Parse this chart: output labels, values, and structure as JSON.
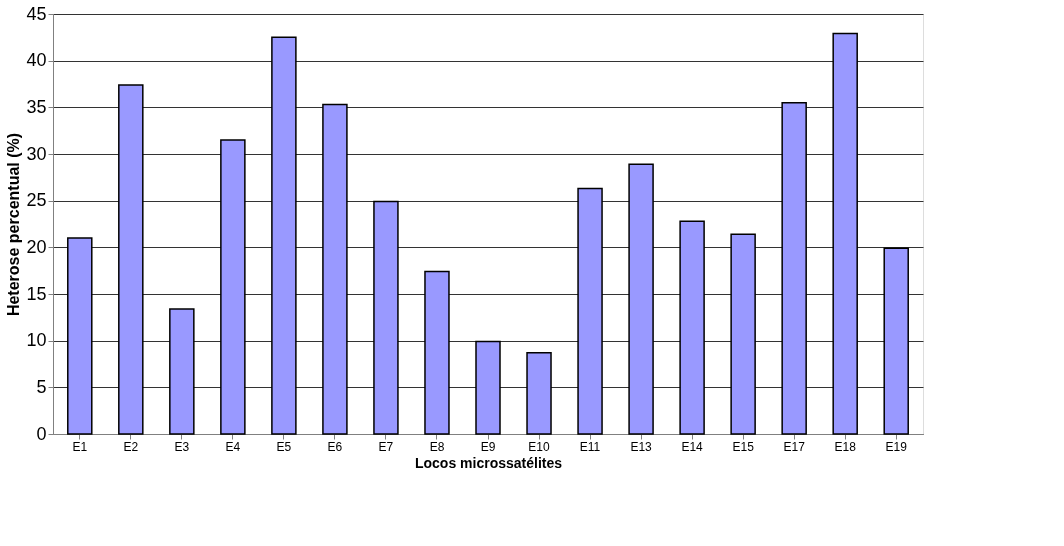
{
  "chart_data": {
    "type": "bar",
    "xlabel": "Locos microssatélites",
    "ylabel": "Heterose percentual (%)",
    "categories": [
      "E1",
      "E2",
      "E3",
      "E4",
      "E5",
      "E6",
      "E7",
      "E8",
      "E9",
      "E10",
      "E11",
      "E13",
      "E14",
      "E15",
      "E17",
      "E18",
      "E19"
    ],
    "values": [
      21.0,
      37.4,
      13.4,
      31.5,
      42.5,
      35.3,
      24.9,
      17.4,
      9.9,
      8.7,
      26.3,
      28.9,
      22.8,
      21.4,
      35.5,
      42.9,
      19.9
    ],
    "color": "#9999ff",
    "ylim": [
      0,
      45
    ],
    "yticks": [
      0,
      5,
      10,
      15,
      20,
      25,
      30,
      35,
      40,
      45
    ],
    "grid": "y"
  }
}
